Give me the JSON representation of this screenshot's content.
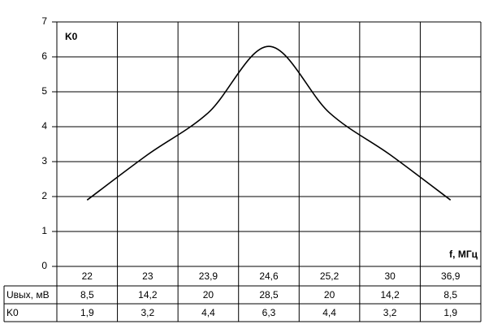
{
  "chart_data": {
    "type": "line",
    "y_label": "K0",
    "x_label": "f, МГц",
    "ylim": [
      0,
      7
    ],
    "yticks": [
      0,
      1,
      2,
      3,
      4,
      5,
      6,
      7
    ],
    "grid": true,
    "reference_lines": [
      3,
      4
    ],
    "categories": [
      "22",
      "23",
      "23,9",
      "24,6",
      "25,2",
      "30",
      "36,9"
    ],
    "series": [
      {
        "name": "K0",
        "color": "#000000",
        "values": [
          1.9,
          3.2,
          4.4,
          6.3,
          4.4,
          3.2,
          1.9
        ],
        "value_labels": [
          "1,9",
          "3,2",
          "4,4",
          "6,3",
          "4,4",
          "3,2",
          "1,9"
        ]
      }
    ],
    "table": {
      "rows": [
        {
          "label": "Uвых, мВ",
          "values": [
            8.5,
            14.2,
            20,
            28.5,
            20,
            14.2,
            8.5
          ],
          "value_labels": [
            "8,5",
            "14,2",
            "20",
            "28,5",
            "20",
            "14,2",
            "8,5"
          ]
        }
      ]
    }
  }
}
